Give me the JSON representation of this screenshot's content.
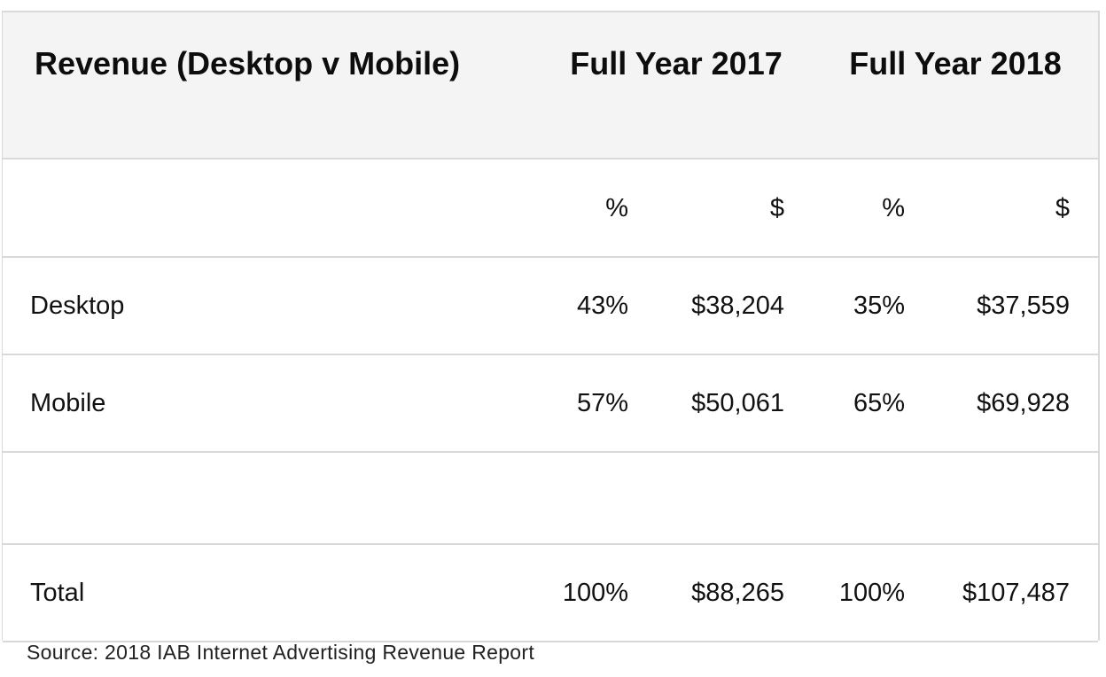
{
  "chart_data": {
    "type": "table",
    "header": {
      "label": "Revenue (Desktop v Mobile)",
      "col_2017": "Full Year 2017",
      "col_2018": "Full Year 2018"
    },
    "units": {
      "pct_2017": "%",
      "usd_2017": "$",
      "pct_2018": "%",
      "usd_2018": "$"
    },
    "rows": {
      "desktop": {
        "label": "Desktop",
        "pct_2017": "43%",
        "usd_2017": "$38,204",
        "pct_2018": "35%",
        "usd_2018": "$37,559"
      },
      "mobile": {
        "label": "Mobile",
        "pct_2017": "57%",
        "usd_2017": "$50,061",
        "pct_2018": "65%",
        "usd_2018": "$69,928"
      },
      "total": {
        "label": "Total",
        "pct_2017": "100%",
        "usd_2017": "$88,265",
        "pct_2018": "100%",
        "usd_2018": "$107,487"
      }
    },
    "source": "Source: 2018 IAB Internet Advertising Revenue Report"
  }
}
